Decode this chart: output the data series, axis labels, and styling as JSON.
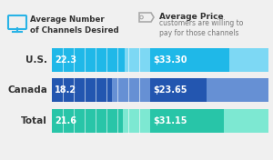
{
  "categories": [
    "U.S.",
    "Canada",
    "Total"
  ],
  "channels": [
    22.3,
    18.2,
    21.6
  ],
  "prices_val": [
    33.3,
    23.65,
    31.15
  ],
  "prices_label": [
    "$33.30",
    "$23.65",
    "$31.15"
  ],
  "channels_label": [
    "22.3",
    "18.2",
    "21.6"
  ],
  "bar_colors_dark": [
    "#1fb8e8",
    "#2356b0",
    "#28c5a8"
  ],
  "bar_colors_light": [
    "#7dd8f4",
    "#6690d4",
    "#7de8d2"
  ],
  "max_channels": 30,
  "max_prices": 50,
  "legend_title1_bold": "Average Number\nof Channels Desired",
  "legend_title2_bold": "Average Price",
  "legend_title2_normal": "customers are willing to\npay for those channels",
  "background_color": "#f0f0f0",
  "icon_color": "#29b3e6",
  "label_color": "#333333",
  "value_color": "#ffffff"
}
